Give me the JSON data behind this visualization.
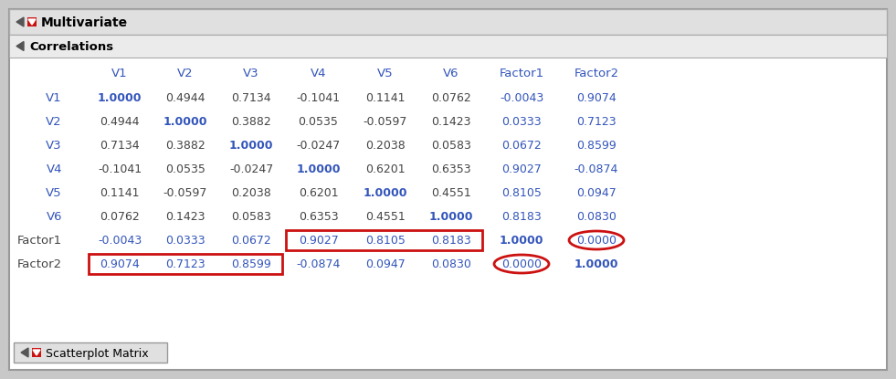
{
  "multivariate_label": "Multivariate",
  "correlations_label": "Correlations",
  "scatterplot_label": "Scatterplot Matrix",
  "col_headers": [
    "V1",
    "V2",
    "V3",
    "V4",
    "V5",
    "V6",
    "Factor1",
    "Factor2"
  ],
  "row_headers": [
    "V1",
    "V2",
    "V3",
    "V4",
    "V5",
    "V6",
    "Factor1",
    "Factor2"
  ],
  "data": [
    [
      "1.0000",
      "0.4944",
      "0.7134",
      "-0.1041",
      "0.1141",
      "0.0762",
      "-0.0043",
      "0.9074"
    ],
    [
      "0.4944",
      "1.0000",
      "0.3882",
      "0.0535",
      "-0.0597",
      "0.1423",
      "0.0333",
      "0.7123"
    ],
    [
      "0.7134",
      "0.3882",
      "1.0000",
      "-0.0247",
      "0.2038",
      "0.0583",
      "0.0672",
      "0.8599"
    ],
    [
      "-0.1041",
      "0.0535",
      "-0.0247",
      "1.0000",
      "0.6201",
      "0.6353",
      "0.9027",
      "-0.0874"
    ],
    [
      "0.1141",
      "-0.0597",
      "0.2038",
      "0.6201",
      "1.0000",
      "0.4551",
      "0.8105",
      "0.0947"
    ],
    [
      "0.0762",
      "0.1423",
      "0.0583",
      "0.6353",
      "0.4551",
      "1.0000",
      "0.8183",
      "0.0830"
    ],
    [
      "-0.0043",
      "0.0333",
      "0.0672",
      "0.9027",
      "0.8105",
      "0.8183",
      "1.0000",
      "0.0000"
    ],
    [
      "0.9074",
      "0.7123",
      "0.8599",
      "-0.0874",
      "0.0947",
      "0.0830",
      "0.0000",
      "1.0000"
    ]
  ],
  "blue_color": "#3355bb",
  "dark_color": "#444444",
  "outer_bg": "#c8c8c8",
  "panel_bg": "#ffffff",
  "header_bar_bg": "#e0e0e0",
  "corr_bar_bg": "#ebebeb",
  "red_color": "#cc1111",
  "dark_triangle_color": "#555555"
}
